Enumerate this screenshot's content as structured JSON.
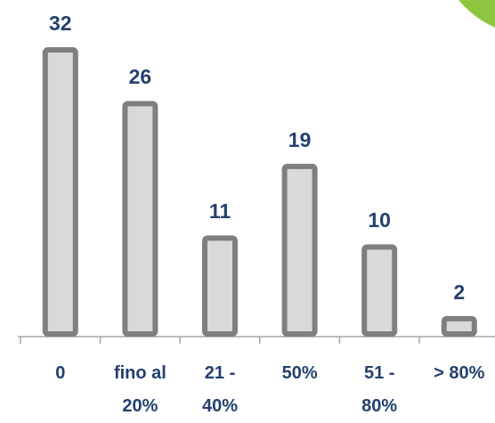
{
  "chart_data": {
    "type": "bar",
    "categories": [
      "0",
      "fino al 20%",
      "21 - 40%",
      "50%",
      "51 - 80%",
      "> 80%"
    ],
    "values": [
      32,
      26,
      11,
      19,
      10,
      2
    ],
    "color": "#d9d9d9",
    "edge_color": "#7f7f7f",
    "label_color": "#24406e"
  }
}
